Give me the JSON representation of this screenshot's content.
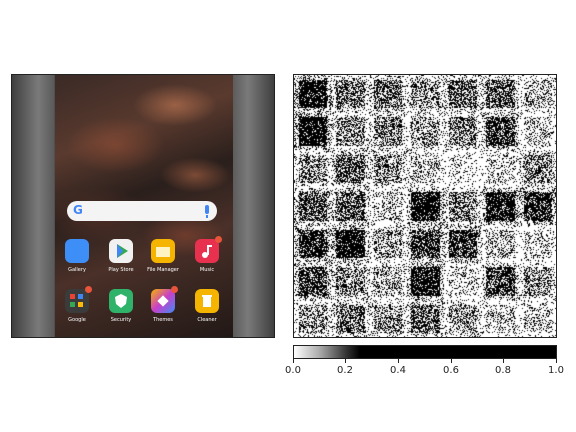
{
  "phone": {
    "search_logo": "G",
    "apps": [
      {
        "label": "Gallery",
        "icon": "gallery-icon",
        "color": "#3e8ef7",
        "badge": false
      },
      {
        "label": "Play Store",
        "icon": "play-store-icon",
        "color": "#f1f1f1",
        "badge": false
      },
      {
        "label": "File Manager",
        "icon": "folder-icon",
        "color": "#f5b400",
        "badge": false
      },
      {
        "label": "Music",
        "icon": "music-icon",
        "color": "#e8304f",
        "badge": true
      },
      {
        "label": "Google",
        "icon": "google-folder-icon",
        "color": "#3b3b3b",
        "badge": true
      },
      {
        "label": "Security",
        "icon": "shield-icon",
        "color": "#2fb36a",
        "badge": false
      },
      {
        "label": "Themes",
        "icon": "themes-icon",
        "color": "#c83fc9",
        "badge": true
      },
      {
        "label": "Cleaner",
        "icon": "trash-icon",
        "color": "#f5b400",
        "badge": false
      }
    ]
  },
  "colorbar": {
    "ticks": [
      "0.0",
      "0.2",
      "0.4",
      "0.6",
      "0.8",
      "1.0"
    ],
    "range": [
      0.0,
      1.0
    ]
  }
}
